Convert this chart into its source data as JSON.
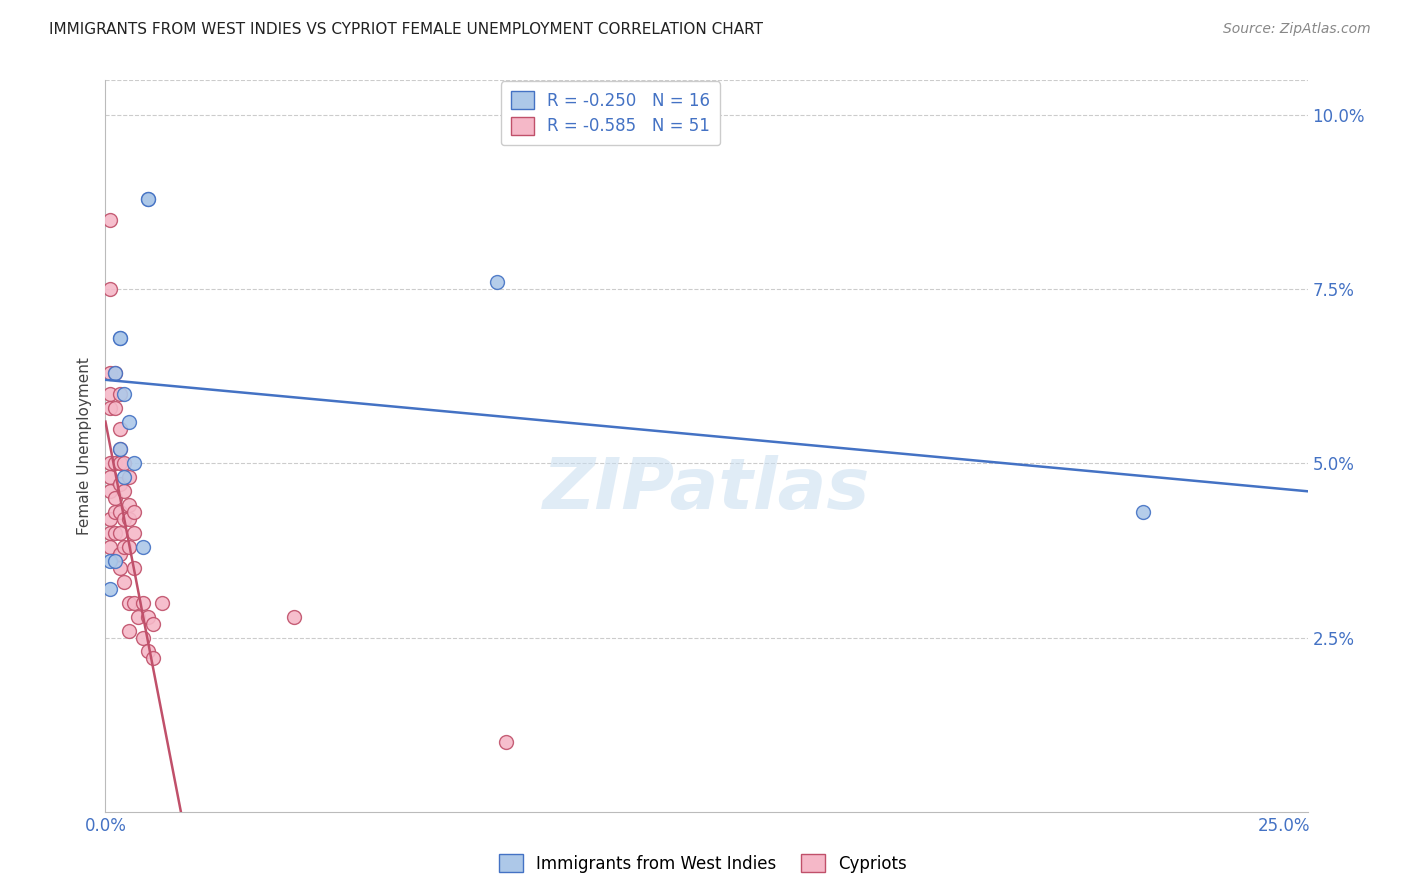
{
  "title": "IMMIGRANTS FROM WEST INDIES VS CYPRIOT FEMALE UNEMPLOYMENT CORRELATION CHART",
  "source": "Source: ZipAtlas.com",
  "ylabel": "Female Unemployment",
  "blue_r": -0.25,
  "blue_n": 16,
  "pink_r": -0.585,
  "pink_n": 51,
  "blue_color": "#adc8e8",
  "pink_color": "#f5b8c8",
  "blue_line_color": "#4472c4",
  "pink_line_color": "#c0506a",
  "legend_label_blue": "Immigrants from West Indies",
  "legend_label_pink": "Cypriots",
  "background_color": "#ffffff",
  "grid_color": "#cccccc",
  "blue_points_x": [
    0.009,
    0.009,
    0.003,
    0.003,
    0.002,
    0.004,
    0.005,
    0.003,
    0.006,
    0.004,
    0.001,
    0.002,
    0.008,
    0.001,
    0.083,
    0.22
  ],
  "blue_points_y": [
    0.088,
    0.088,
    0.068,
    0.068,
    0.063,
    0.06,
    0.056,
    0.052,
    0.05,
    0.048,
    0.036,
    0.036,
    0.038,
    0.032,
    0.076,
    0.043
  ],
  "pink_points_x": [
    0.001,
    0.001,
    0.001,
    0.001,
    0.001,
    0.001,
    0.001,
    0.001,
    0.001,
    0.001,
    0.001,
    0.002,
    0.002,
    0.002,
    0.002,
    0.002,
    0.002,
    0.003,
    0.003,
    0.003,
    0.003,
    0.003,
    0.003,
    0.003,
    0.003,
    0.003,
    0.004,
    0.004,
    0.004,
    0.004,
    0.004,
    0.005,
    0.005,
    0.005,
    0.005,
    0.005,
    0.005,
    0.006,
    0.006,
    0.006,
    0.006,
    0.007,
    0.008,
    0.008,
    0.009,
    0.009,
    0.01,
    0.01,
    0.012,
    0.04,
    0.085
  ],
  "pink_points_y": [
    0.085,
    0.075,
    0.063,
    0.06,
    0.058,
    0.05,
    0.048,
    0.046,
    0.042,
    0.04,
    0.038,
    0.063,
    0.058,
    0.05,
    0.045,
    0.043,
    0.04,
    0.06,
    0.055,
    0.052,
    0.05,
    0.047,
    0.043,
    0.04,
    0.037,
    0.035,
    0.05,
    0.046,
    0.042,
    0.038,
    0.033,
    0.048,
    0.044,
    0.042,
    0.038,
    0.03,
    0.026,
    0.043,
    0.04,
    0.035,
    0.03,
    0.028,
    0.03,
    0.025,
    0.028,
    0.023,
    0.027,
    0.022,
    0.03,
    0.028,
    0.01
  ],
  "blue_line_x0": 0.0,
  "blue_line_x1": 0.255,
  "blue_line_y0": 0.062,
  "blue_line_y1": 0.046,
  "pink_line_x0": 0.0,
  "pink_line_x1": 0.016,
  "pink_line_y0": 0.056,
  "pink_line_y1": 0.0,
  "xlim": [
    0.0,
    0.255
  ],
  "ylim": [
    0.0,
    0.105
  ],
  "xtick_positions": [
    0.0,
    0.05,
    0.1,
    0.15,
    0.2,
    0.25
  ],
  "xtick_labels": [
    "0.0%",
    "",
    "",
    "",
    "",
    "25.0%"
  ],
  "ytick_positions": [
    0.0,
    0.025,
    0.05,
    0.075,
    0.1
  ],
  "ytick_labels_right": [
    "",
    "2.5%",
    "5.0%",
    "7.5%",
    "10.0%"
  ],
  "watermark": "ZIPatlas",
  "marker_size": 100
}
